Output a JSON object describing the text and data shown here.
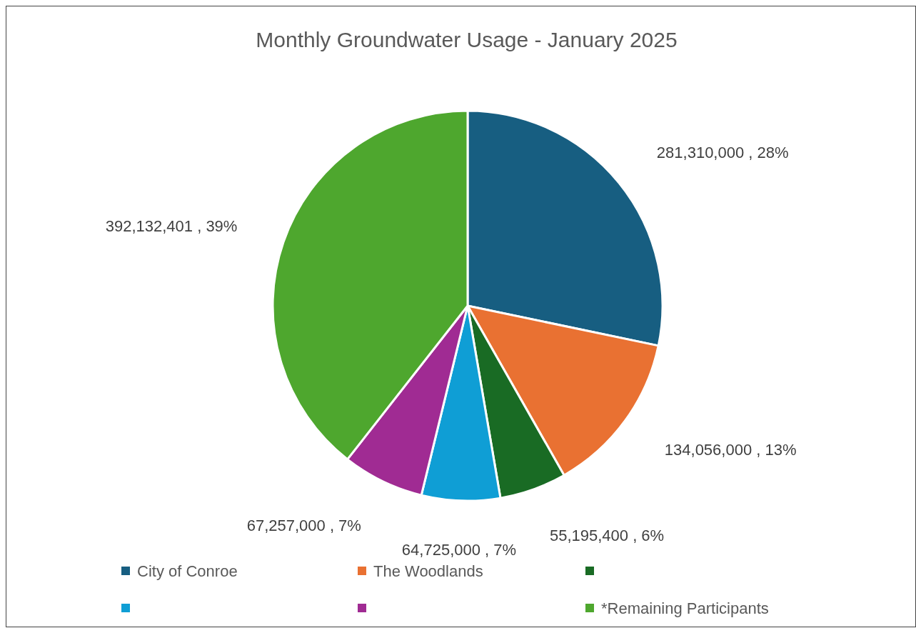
{
  "chart_data": {
    "type": "pie",
    "title": "Monthly Groundwater Usage - January 2025",
    "categories": [
      "City of Conroe",
      "The Woodlands",
      null,
      null,
      null,
      "*Remaining Participants"
    ],
    "values": [
      281310000,
      134056000,
      55195400,
      64725000,
      67257000,
      392132401
    ],
    "colors": [
      "#175e81",
      "#e97132",
      "#196b24",
      "#0f9ed5",
      "#a02b93",
      "#4ea72e"
    ],
    "value_labels": [
      "281,310,000 , 28%",
      "134,056,000 , 13%",
      "55,195,400 , 6%",
      "64,725,000 , 7%",
      "67,257,000 , 7%",
      "392,132,401 , 39%"
    ],
    "legend": "bottom"
  }
}
